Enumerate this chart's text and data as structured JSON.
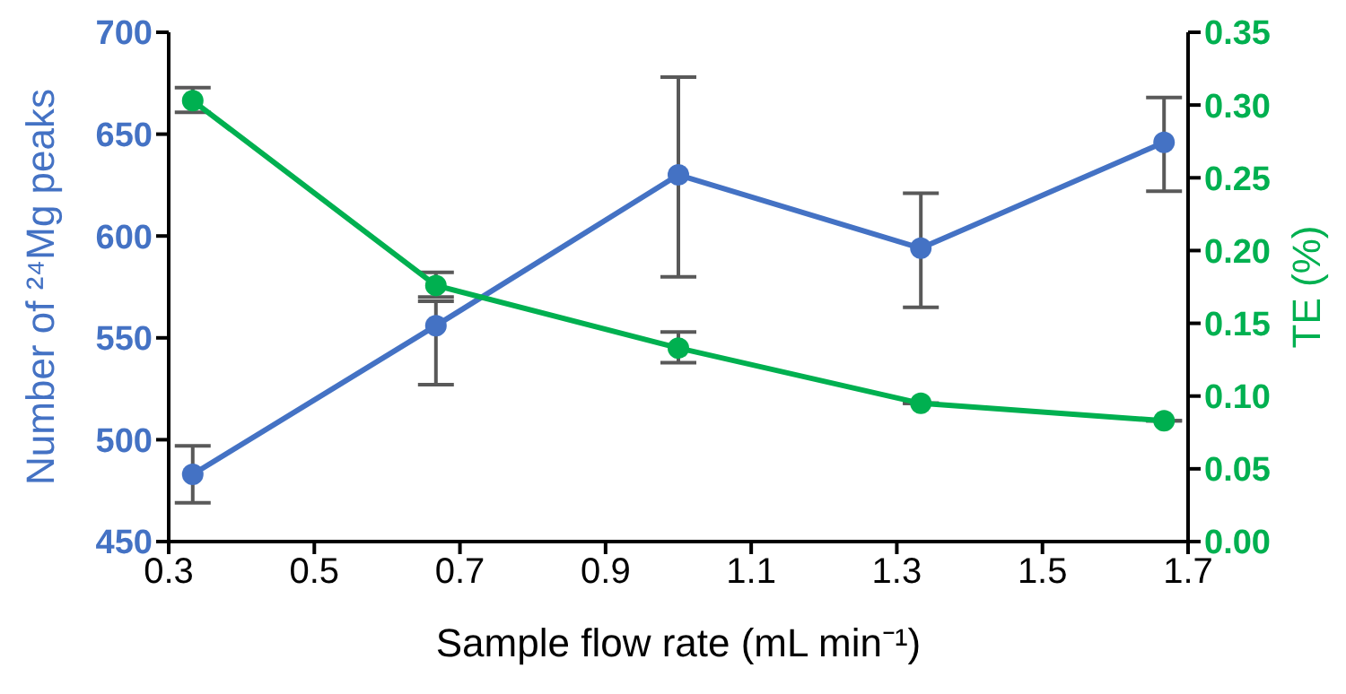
{
  "chart_data": {
    "type": "line",
    "xlabel": "Sample flow rate (mL min⁻¹)",
    "ylabel": "Number of ²⁴Mg peaks",
    "y2label": "TE (%)",
    "x": [
      0.333,
      0.667,
      1.0,
      1.333,
      1.667
    ],
    "series": [
      {
        "color": "#4472c4",
        "values": [
          483,
          556,
          630,
          594,
          646
        ],
        "errors": [
          [
            469,
            497
          ],
          [
            527,
            568
          ],
          [
            580,
            678
          ],
          [
            565,
            621
          ],
          [
            622,
            668
          ]
        ]
      },
      {
        "color": "#00b050",
        "axis": "y2",
        "values": [
          0.303,
          0.176,
          0.133,
          0.095,
          0.083
        ],
        "errors": [
          [
            0.295,
            0.312
          ],
          [
            0.168,
            0.185
          ],
          [
            0.123,
            0.144
          ],
          null,
          null
        ]
      }
    ],
    "xlim": [
      0.3,
      1.7
    ],
    "xticks": [
      0.3,
      0.5,
      0.7,
      0.9,
      1.1,
      1.3,
      1.5,
      1.7
    ],
    "ylim": [
      450,
      700
    ],
    "yticks": [
      450,
      500,
      550,
      600,
      650,
      700
    ],
    "y2lim": [
      0,
      0.35
    ],
    "y2ticks": [
      {
        "value": 0,
        "label": "0.00"
      },
      0.05,
      {
        "value": 0.1,
        "label": "0.10"
      },
      0.15,
      {
        "value": 0.2,
        "label": "0.20"
      },
      0.25,
      {
        "value": 0.3,
        "label": "0.30"
      },
      0.35
    ],
    "marker": "circle",
    "grid": false,
    "legend": false
  }
}
